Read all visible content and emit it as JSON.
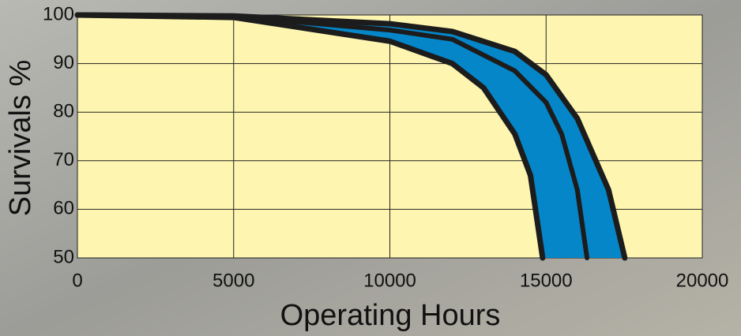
{
  "chart_data": {
    "type": "band-line",
    "x_label": "Operating Hours",
    "y_label": "Survivals %",
    "xlim": [
      0,
      20000
    ],
    "xticks": [
      0,
      5000,
      10000,
      15000,
      20000
    ],
    "ylim": [
      50,
      100
    ],
    "yticks": [
      50,
      60,
      70,
      80,
      90,
      100
    ],
    "grid": true,
    "band_color": "#0586c8",
    "line_color": "#1c1c1c",
    "plot_background": "#fdf5b0",
    "series": [
      {
        "x": [
          0,
          5000,
          10000,
          12000,
          13000,
          14000,
          14500,
          14890
        ],
        "values": [
          100,
          99.5,
          94.6,
          90,
          85,
          75.5,
          67,
          50
        ]
      },
      {
        "x": [
          0,
          5000,
          10000,
          12000,
          14000,
          15000,
          15500,
          16000,
          16310
        ],
        "values": [
          100,
          99.7,
          96.9,
          95,
          88.5,
          82,
          75.5,
          64,
          50
        ]
      },
      {
        "x": [
          0,
          5000,
          10000,
          12000,
          14000,
          15000,
          16000,
          17000,
          17520
        ],
        "values": [
          100,
          99.8,
          98.2,
          96.6,
          92.5,
          87.7,
          78.7,
          64,
          50
        ]
      }
    ]
  }
}
